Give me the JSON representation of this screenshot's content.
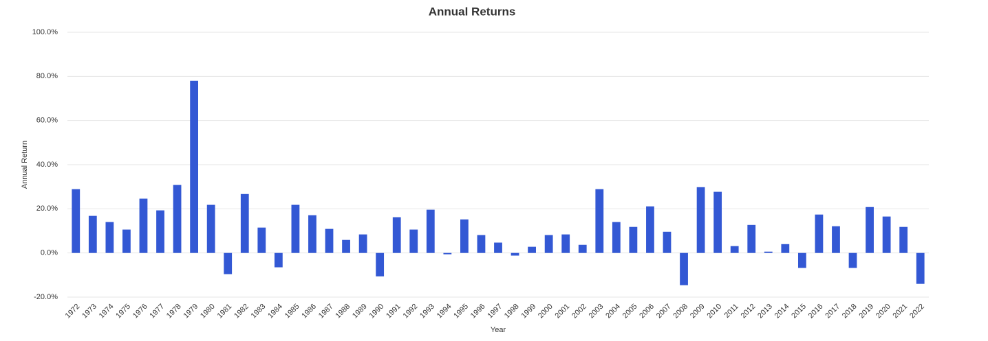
{
  "chart_data": {
    "type": "bar",
    "title": "Annual Returns",
    "x_label": "Year",
    "y_label": "Annual Return",
    "categories": [
      "1972",
      "1973",
      "1974",
      "1975",
      "1976",
      "1977",
      "1978",
      "1979",
      "1980",
      "1981",
      "1982",
      "1983",
      "1984",
      "1985",
      "1986",
      "1987",
      "1988",
      "1989",
      "1990",
      "1991",
      "1992",
      "1993",
      "1994",
      "1995",
      "1996",
      "1997",
      "1998",
      "1999",
      "2000",
      "2001",
      "2002",
      "2003",
      "2004",
      "2005",
      "2006",
      "2007",
      "2008",
      "2009",
      "2010",
      "2011",
      "2012",
      "2013",
      "2014",
      "2015",
      "2016",
      "2017",
      "2018",
      "2019",
      "2020",
      "2021",
      "2022"
    ],
    "values": [
      28.9,
      16.8,
      14.0,
      10.6,
      24.6,
      19.3,
      30.8,
      78.0,
      21.8,
      -9.6,
      26.7,
      11.5,
      -6.5,
      21.8,
      17.1,
      10.9,
      5.9,
      8.4,
      -10.6,
      16.2,
      10.6,
      19.6,
      -0.6,
      15.2,
      8.1,
      4.7,
      -1.2,
      2.8,
      8.1,
      8.4,
      3.7,
      28.9,
      14.0,
      11.8,
      21.1,
      9.6,
      -14.6,
      29.8,
      27.7,
      3.1,
      12.7,
      0.6,
      4.0,
      -6.8,
      17.4,
      12.1,
      -6.8,
      20.8,
      16.5,
      11.8,
      -14.0
    ],
    "color": "#3358d4",
    "ylim": [
      -20,
      100
    ],
    "yticks": [
      {
        "value": -20,
        "label": "-20.0%"
      },
      {
        "value": 0,
        "label": "0.0%"
      },
      {
        "value": 20,
        "label": "20.0%"
      },
      {
        "value": 40,
        "label": "40.0%"
      },
      {
        "value": 60,
        "label": "60.0%"
      },
      {
        "value": 80,
        "label": "80.0%"
      },
      {
        "value": 100,
        "label": "100.0%"
      }
    ],
    "grid": true
  }
}
